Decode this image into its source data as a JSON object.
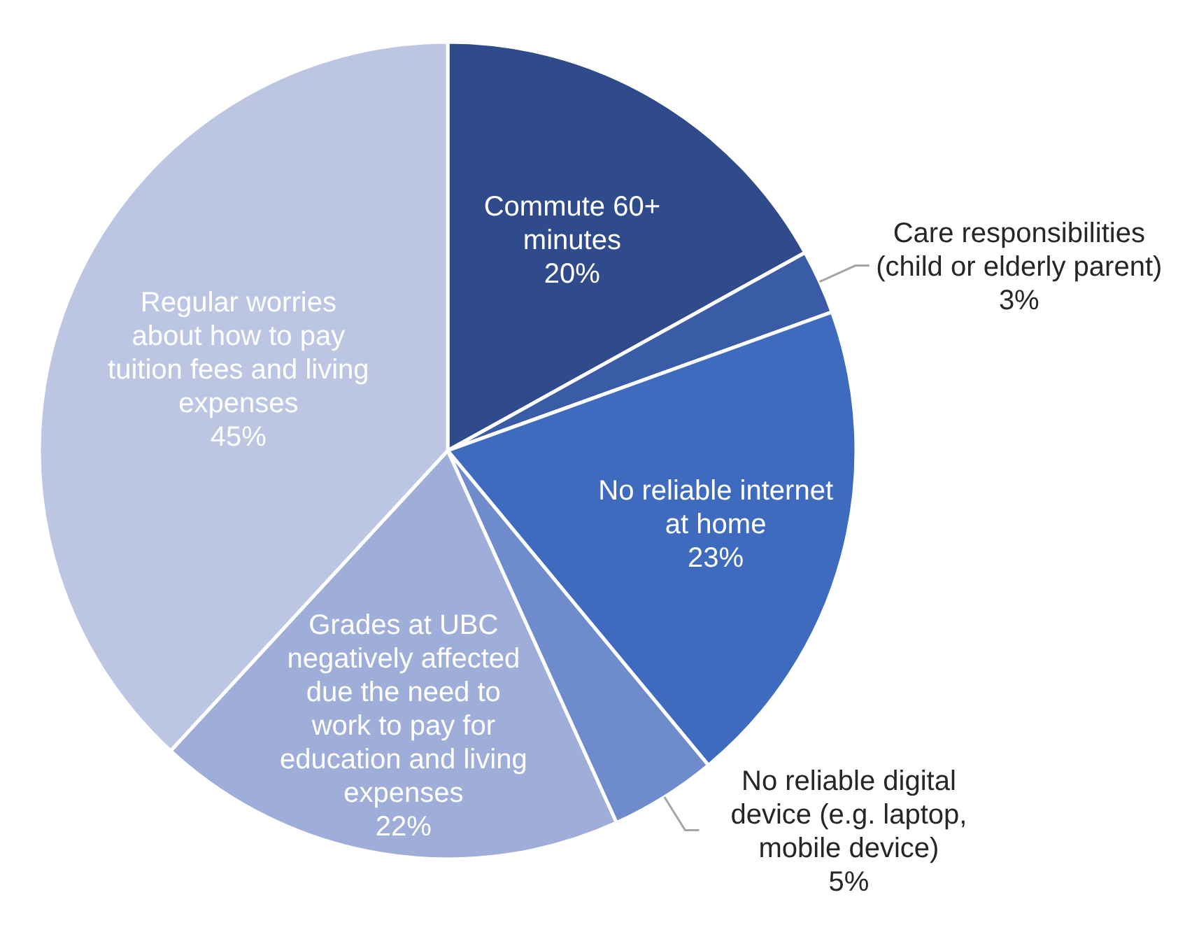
{
  "chart_data": {
    "type": "pie",
    "categories": [
      "Commute 60+ minutes",
      "Care responsibilities (child or elderly parent)",
      "No reliable internet at home",
      "No reliable digital device (e.g. laptop, mobile device)",
      "Grades at UBC negatively affected due the need to work to pay for education and living expenses",
      "Regular worries about how to pay tuition fees and living expenses"
    ],
    "values": [
      20,
      3,
      23,
      5,
      22,
      45
    ],
    "value_labels": [
      "20%",
      "3%",
      "23%",
      "5%",
      "22%",
      "45%"
    ],
    "colors": [
      "#2f4b8c",
      "#3a5ca6",
      "#3e6bbe",
      "#6e8bcb",
      "#9eaed8",
      "#bcc6e3"
    ]
  }
}
